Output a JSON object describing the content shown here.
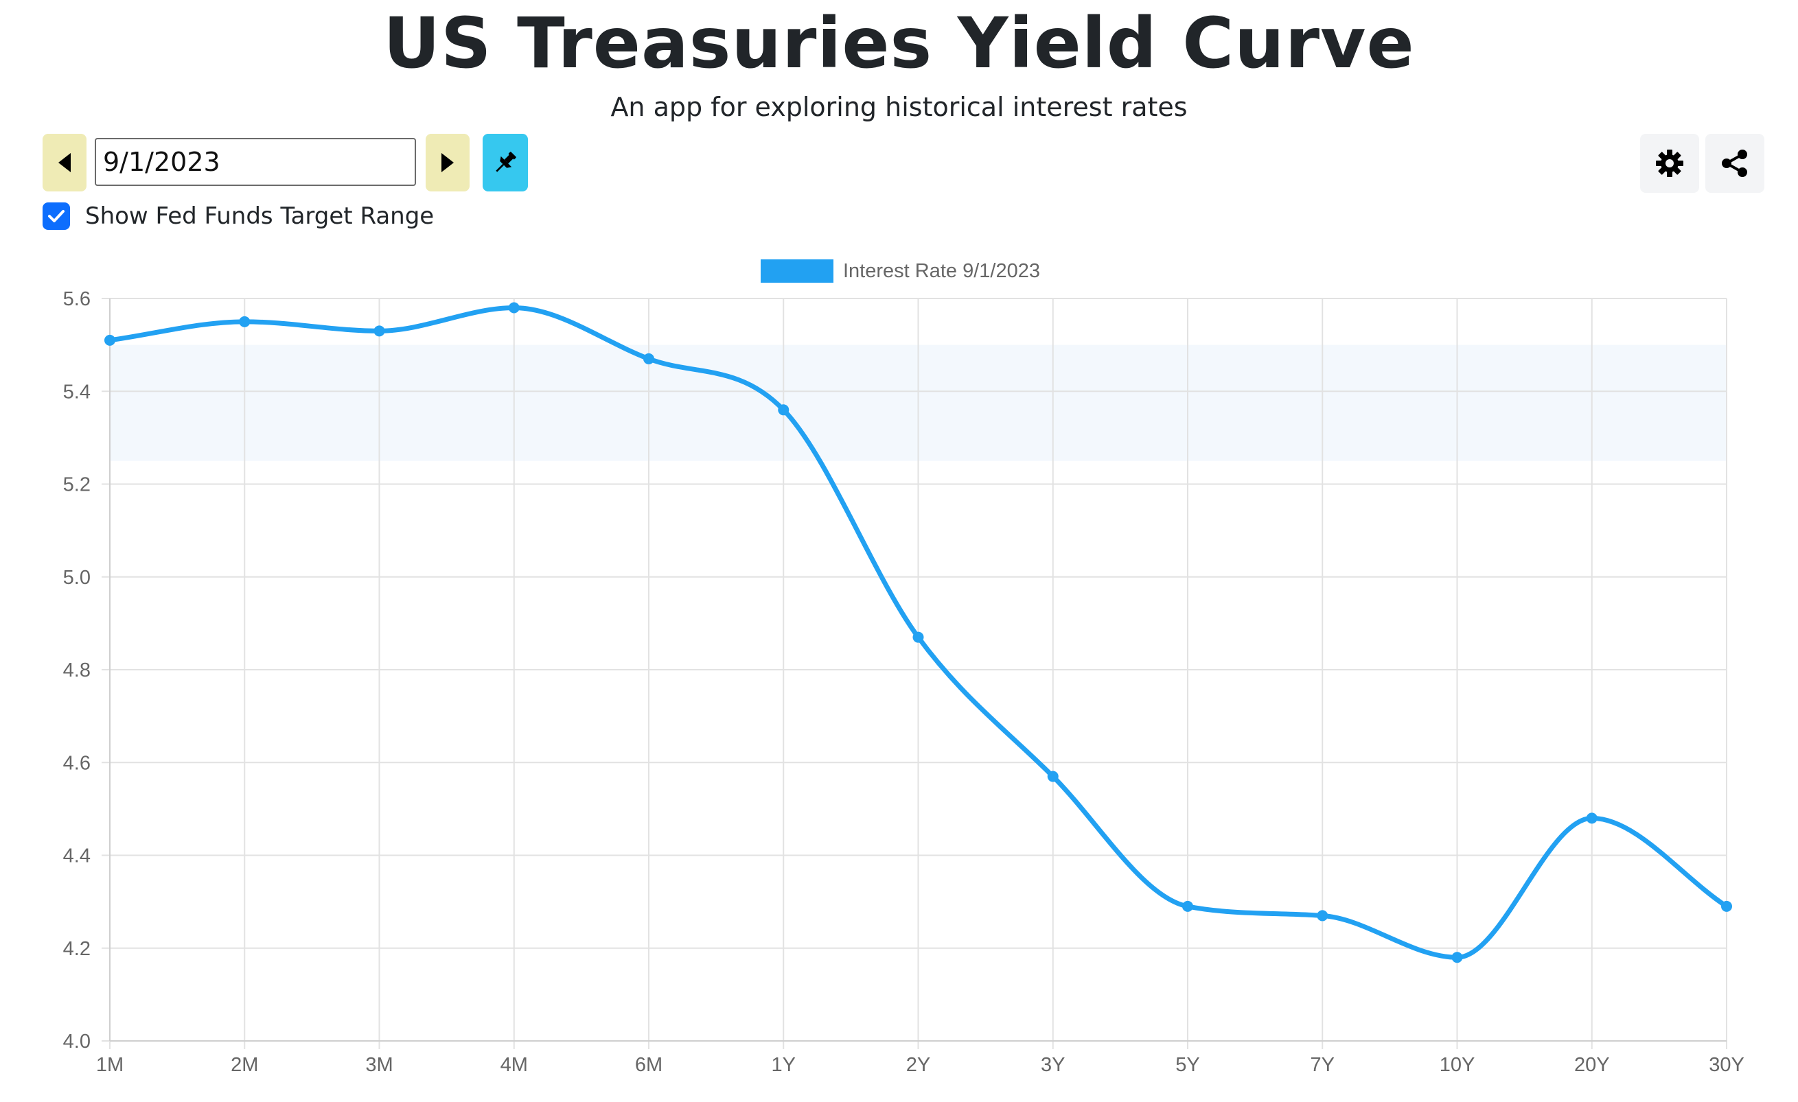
{
  "header": {
    "title": "US Treasuries Yield Curve",
    "subtitle": "An app for exploring historical interest rates"
  },
  "controls": {
    "date_value": "9/1/2023",
    "prev_icon": "caret-left-icon",
    "next_icon": "caret-right-icon",
    "pin_icon": "pin-icon",
    "settings_icon": "gear-icon",
    "share_icon": "share-icon",
    "show_fed_funds_label": "Show Fed Funds Target Range",
    "show_fed_funds_checked": true
  },
  "colors": {
    "line": "#22a1f2",
    "fed_band": "#f3f8fd",
    "nav_button": "#efebb5",
    "pin_button": "#36c8ef",
    "checkbox": "#0d6efd"
  },
  "chart_data": {
    "type": "line",
    "categories": [
      "1M",
      "2M",
      "3M",
      "4M",
      "6M",
      "1Y",
      "2Y",
      "3Y",
      "5Y",
      "7Y",
      "10Y",
      "20Y",
      "30Y"
    ],
    "series": [
      {
        "name": "Interest Rate 9/1/2023",
        "values": [
          5.51,
          5.55,
          5.53,
          5.58,
          5.47,
          5.36,
          4.87,
          4.57,
          4.29,
          4.27,
          4.18,
          4.48,
          4.29
        ]
      }
    ],
    "fed_funds_target_range": [
      5.25,
      5.5
    ],
    "ylim": [
      4.0,
      5.6
    ],
    "yticks": [
      "4.0",
      "4.2",
      "4.4",
      "4.6",
      "4.8",
      "5.0",
      "5.2",
      "5.4",
      "5.6"
    ],
    "grid": true,
    "legend_position": "top-center"
  }
}
